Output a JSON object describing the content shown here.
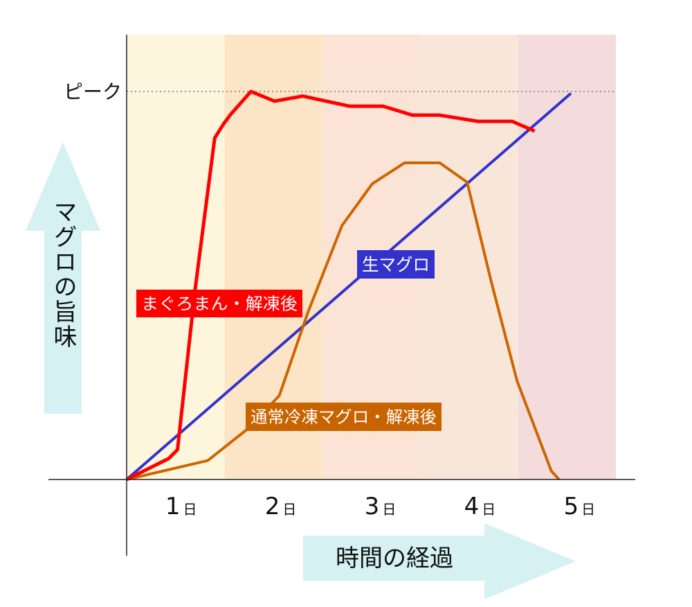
{
  "chart_data": {
    "type": "line",
    "title": "",
    "xlabel": "時間の経過",
    "ylabel": "マグロの旨味",
    "xlim": [
      0,
      5
    ],
    "ylim": [
      0,
      100
    ],
    "x_ticks": [
      {
        "num": "1",
        "unit": "日",
        "day": 1
      },
      {
        "num": "2",
        "unit": "日",
        "day": 2
      },
      {
        "num": "3",
        "unit": "日",
        "day": 3
      },
      {
        "num": "4",
        "unit": "日",
        "day": 4
      },
      {
        "num": "5",
        "unit": "日",
        "day": 5
      }
    ],
    "peak_label": "ピーク",
    "peak_value": 100,
    "grid": false,
    "day_band_colors": [
      "#fdf5dc",
      "#fce5c6",
      "#fbe3d5",
      "#f8e6d9",
      "#f5dcdc"
    ],
    "axis_arrow_color": "#d5f1f1",
    "series": [
      {
        "name": "まぐろまん・解凍後",
        "color": "#ff0000",
        "label_bg": "#ff0000",
        "points": [
          [
            0,
            0
          ],
          [
            0.43,
            5.4
          ],
          [
            0.52,
            7.7
          ],
          [
            0.7,
            49
          ],
          [
            0.9,
            88
          ],
          [
            0.99,
            91.6
          ],
          [
            1.06,
            94
          ],
          [
            1.27,
            100
          ],
          [
            1.51,
            97.5
          ],
          [
            1.8,
            98.8
          ],
          [
            2.28,
            96.2
          ],
          [
            2.62,
            96.2
          ],
          [
            2.92,
            93.9
          ],
          [
            3.2,
            93.9
          ],
          [
            3.59,
            92.3
          ],
          [
            3.94,
            92.3
          ],
          [
            4.17,
            89.8
          ]
        ]
      },
      {
        "name": "生マグロ",
        "color": "#3333cc",
        "label_bg": "#3333cc",
        "points": [
          [
            0,
            0
          ],
          [
            4.54,
            99.5
          ]
        ]
      },
      {
        "name": "通常冷凍マグロ・解凍後",
        "color": "#cc6600",
        "label_bg": "#c86400",
        "points": [
          [
            0,
            0
          ],
          [
            0.83,
            4.9
          ],
          [
            1.22,
            12.7
          ],
          [
            1.56,
            21.6
          ],
          [
            1.85,
            42.9
          ],
          [
            2.2,
            65.4
          ],
          [
            2.51,
            76.2
          ],
          [
            2.84,
            81.6
          ],
          [
            3.2,
            81.6
          ],
          [
            3.48,
            76.6
          ],
          [
            3.73,
            50.6
          ],
          [
            3.99,
            25.4
          ],
          [
            4.34,
            2.2
          ],
          [
            4.42,
            0
          ]
        ]
      }
    ]
  }
}
